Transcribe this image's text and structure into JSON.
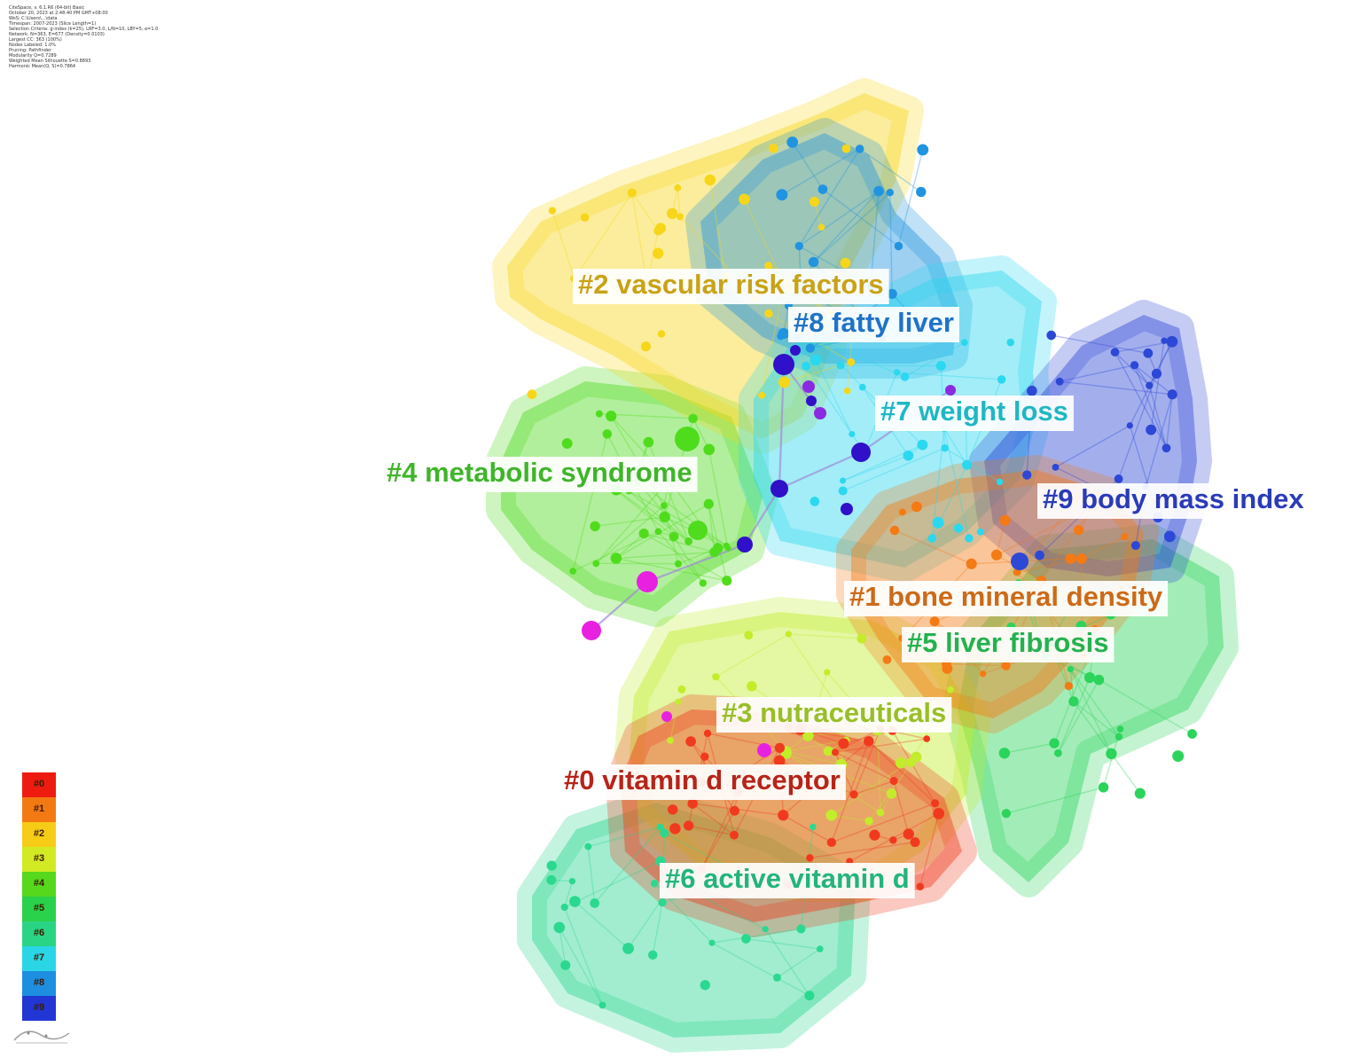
{
  "metadata_lines": [
    "CiteSpace, v. 6.1.R6 (64-bit) Basic",
    "October 20, 2023 at 2:48:40 PM GMT+08:00",
    "WoS: C:\\Users\\...\\data",
    "Timespan: 2007-2023 (Slice Length=1)",
    "Selection Criteria: g-index (k=25), LRF=3.0, L/N=10, LBY=5, e=1.0",
    "Network: N=363, E=677 (Density=0.0103)",
    "Largest CC: 363 (100%)",
    "Nodes Labeled: 1.0%",
    "Pruning: Pathfinder",
    "Modularity Q=0.7289",
    "Weighted Mean Silhouette S=0.8893",
    "Harmonic Mean(Q, S)=0.7864"
  ],
  "colors": {
    "c0": "#f03a1e",
    "c1": "#f47a14",
    "c2": "#f7d61a",
    "c3": "#c3ec2a",
    "c4": "#4fdc1c",
    "c5": "#2bd45a",
    "c6": "#2bd890",
    "c7": "#2ad8ef",
    "c8": "#2094e0",
    "c9": "#2d48d6",
    "magenta": "#e821e0",
    "purple": "#8a2be2",
    "indigo": "#3010c8"
  },
  "clusters": [
    {
      "id": "c2",
      "label": "#2 vascular risk factors",
      "text_color": "#c9a215"
    },
    {
      "id": "c8",
      "label": "#8 fatty liver",
      "text_color": "#1f72c7"
    },
    {
      "id": "c7",
      "label": "#7 weight loss",
      "text_color": "#1fb7c4"
    },
    {
      "id": "c4",
      "label": "#4 metabolic syndrome",
      "text_color": "#3fb52a"
    },
    {
      "id": "c9",
      "label": "#9 body mass index",
      "text_color": "#2a3bb8"
    },
    {
      "id": "c1",
      "label": "#1 bone mineral density",
      "text_color": "#cc6a17"
    },
    {
      "id": "c5",
      "label": "#5 liver fibrosis",
      "text_color": "#23b24e"
    },
    {
      "id": "c3",
      "label": "#3 nutraceuticals",
      "text_color": "#98bf26"
    },
    {
      "id": "c0",
      "label": "#0 vitamin d receptor",
      "text_color": "#b72418"
    },
    {
      "id": "c6",
      "label": "#6 active vitamin d",
      "text_color": "#22b57b"
    }
  ],
  "legend": [
    {
      "label": "#0",
      "color": "#ee1c10"
    },
    {
      "label": "#1",
      "color": "#f37a12"
    },
    {
      "label": "#2",
      "color": "#f6cc16"
    },
    {
      "label": "#3",
      "color": "#d2ea24"
    },
    {
      "label": "#4",
      "color": "#56d81c"
    },
    {
      "label": "#5",
      "color": "#29d24a"
    },
    {
      "label": "#6",
      "color": "#2ad485"
    },
    {
      "label": "#7",
      "color": "#2ad6e6"
    },
    {
      "label": "#8",
      "color": "#1e8ee0"
    },
    {
      "label": "#9",
      "color": "#2236d4"
    }
  ]
}
